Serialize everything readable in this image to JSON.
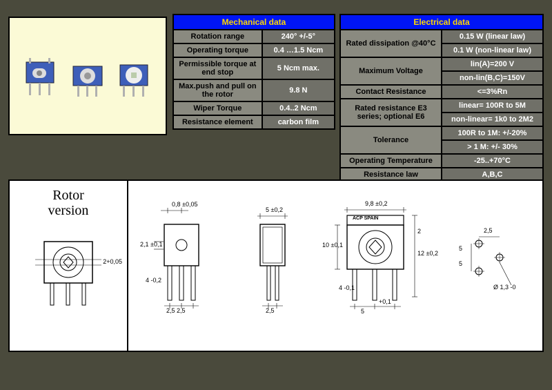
{
  "colors": {
    "page_bg": "#4a4a3c",
    "photo_bg": "#fbfad6",
    "header_bg": "#0015f5",
    "header_fg": "#ffd800",
    "cell_label_bg": "#8a8a80",
    "cell_value_bg": "#707068",
    "cell_value_fg": "#ffffff",
    "border": "#000000",
    "component_body": "#3e5fb9",
    "component_pin": "#c8c8c8",
    "diagram_bg": "#ffffff"
  },
  "mechanical": {
    "title": "Mechanical data",
    "rows": [
      {
        "label": "Rotation range",
        "value": "240° +/-5°"
      },
      {
        "label": "Operating torque",
        "value": "0.4 …1.5 Ncm"
      },
      {
        "label": "Permissible torque at end stop",
        "value": "5 Ncm max."
      },
      {
        "label": "Max.push and pull on the rotor",
        "value": "9.8 N"
      },
      {
        "label": "Wiper Torque",
        "value": "0.4..2 Ncm"
      },
      {
        "label": "Resistance element",
        "value": "carbon film"
      }
    ]
  },
  "electrical": {
    "title": "Electrical data",
    "rows": [
      {
        "label": "Rated dissipation @40°C",
        "values": [
          "0.15 W (linear law)",
          "0.1 W (non-linear law)"
        ]
      },
      {
        "label": "Maximum Voltage",
        "values": [
          "lin(A)=200 V",
          "non-lin(B,C)=150V"
        ]
      },
      {
        "label": "Contact Resistance",
        "values": [
          "<=3%Rn"
        ]
      },
      {
        "label": "Rated resistance E3 series; optional E6",
        "values": [
          "linear= 100R to 5M",
          "non-linear= 1k0 to 2M2"
        ]
      },
      {
        "label": "Tolerance",
        "values": [
          "100R to 1M: +/-20%",
          "> 1 M: +/- 30%"
        ]
      },
      {
        "label": "Operating Temperature",
        "values": [
          "-25..+70°C"
        ]
      },
      {
        "label": "Resistance law",
        "values": [
          "A,B,C"
        ]
      }
    ]
  },
  "rotor": {
    "title": "Rotor\nversion"
  },
  "drawings": {
    "rotor_icon": {
      "dim": "2+0,05"
    },
    "side1": {
      "w": "0,8 ±0,05",
      "h": "2,1 ±0,1",
      "pin": "4 -0,2",
      "pitch": "2,5 2,5"
    },
    "side2": {
      "w": "5 ±0,2",
      "pin": "2,5"
    },
    "front": {
      "w": "9,8 ±0,2",
      "brand": "ACP SPAIN",
      "h": "10 ±0,1",
      "h2": "12 ±0,2",
      "pin": "4 -0,1",
      "pin2": "+0,1",
      "pitch": "5",
      "hex": "2"
    },
    "pcb": {
      "a": "2,5",
      "b": "5",
      "c": "5",
      "dia": "Ø 1,3 -0"
    }
  }
}
